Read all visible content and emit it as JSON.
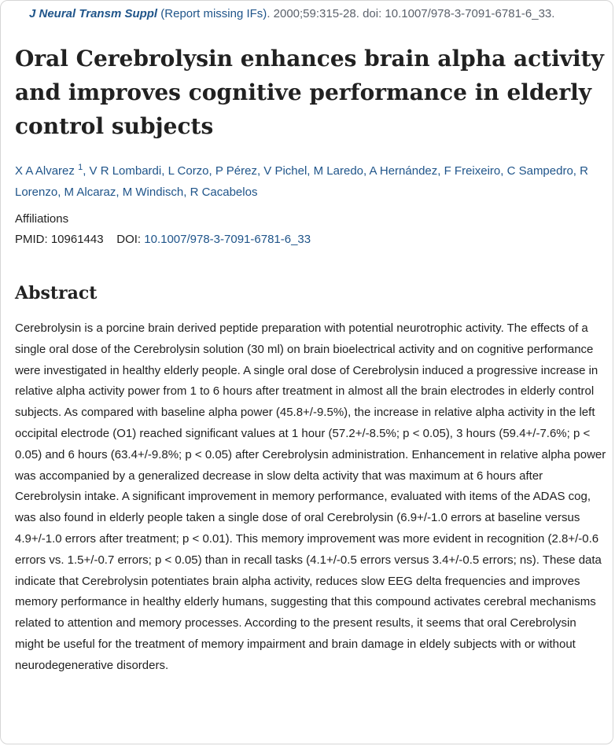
{
  "citation": {
    "journal": "J Neural Transm Suppl",
    "report_missing": "(Report missing IFs)",
    "details": ". 2000;59:315-28. doi: 10.1007/978-3-7091-6781-6_33."
  },
  "article": {
    "title": "Oral Cerebrolysin enhances brain alpha activity and improves cognitive performance in elderly control subjects"
  },
  "authors": {
    "first_author": "X A Alvarez",
    "first_author_sup": "1",
    "rest": ", V R Lombardi, L Corzo, P Pérez, V Pichel, M Laredo, A Hernández, F Freixeiro, C Sampedro, R Lorenzo, M Alcaraz, M Windisch, R Cacabelos"
  },
  "meta": {
    "affiliations_label": "Affiliations",
    "pmid_label": "PMID: 10961443",
    "doi_label": "DOI:",
    "doi_value": "10.1007/978-3-7091-6781-6_33"
  },
  "abstract": {
    "heading": "Abstract",
    "text": "Cerebrolysin is a porcine brain derived peptide preparation with potential neurotrophic activity. The effects of a single oral dose of the Cerebrolysin solution (30 ml) on brain bioelectrical activity and on cognitive performance were investigated in healthy elderly people. A single oral dose of Cerebrolysin induced a progressive increase in relative alpha activity power from 1 to 6 hours after treatment in almost all the brain electrodes in elderly control subjects. As compared with baseline alpha power (45.8+/-9.5%), the increase in relative alpha activity in the left occipital electrode (O1) reached significant values at 1 hour (57.2+/-8.5%; p < 0.05), 3 hours (59.4+/-7.6%; p < 0.05) and 6 hours (63.4+/-9.8%; p < 0.05) after Cerebrolysin administration. Enhancement in relative alpha power was accompanied by a generalized decrease in slow delta activity that was maximum at 6 hours after Cerebrolysin intake. A significant improvement in memory performance, evaluated with items of the ADAS cog, was also found in elderly people taken a single dose of oral Cerebrolysin (6.9+/-1.0 errors at baseline versus 4.9+/-1.0 errors after treatment; p < 0.01). This memory improvement was more evident in recognition (2.8+/-0.6 errors vs. 1.5+/-0.7 errors; p < 0.05) than in recall tasks (4.1+/-0.5 errors versus 3.4+/-0.5 errors; ns). These data indicate that Cerebrolysin potentiates brain alpha activity, reduces slow EEG delta frequencies and improves memory performance in healthy elderly humans, suggesting that this compound activates cerebral mechanisms related to attention and memory processes. According to the present results, it seems that oral Cerebrolysin might be useful for the treatment of memory impairment and brain damage in eldely subjects with or without neurodegenerative disorders."
  },
  "colors": {
    "link": "#20558a",
    "text": "#212121",
    "muted": "#5b616b"
  }
}
